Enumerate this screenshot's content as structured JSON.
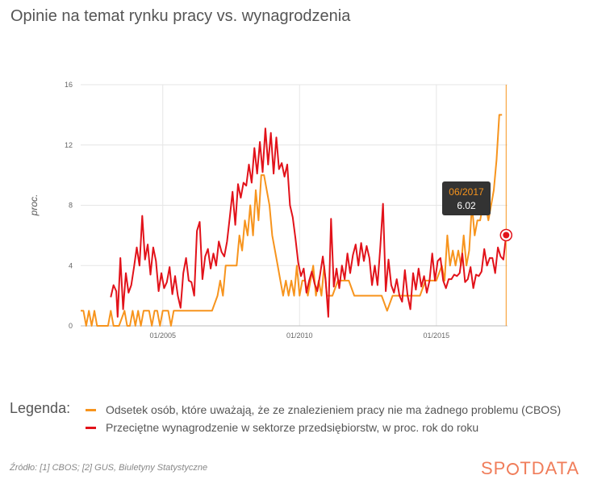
{
  "title": "Opinie na temat rynku pracy vs. wynagrodzenia",
  "legend": {
    "label": "Legenda:",
    "items": [
      {
        "text": "Odsetek osób, które uważają, że ze znalezieniem pracy nie ma żadnego problemu (CBOS)",
        "color": "#f7941d"
      },
      {
        "text": "Przeciętne wynagrodzenie w sektorze przedsiębiorstw, w proc. rok do roku",
        "color": "#e2121a"
      }
    ]
  },
  "source": "Źródło: [1] CBOS; [2] GUS, Biuletyny Statystyczne",
  "brand": {
    "before": "SP",
    "after": "TDATA"
  },
  "tooltip": {
    "date": "06/2017",
    "value": "6.02"
  },
  "chart_data": {
    "type": "line",
    "ylabel": "proc.",
    "xlabel": "",
    "ylim": [
      0,
      16
    ],
    "yticks": [
      "0",
      "4",
      "8",
      "12",
      "16"
    ],
    "xlim": [
      2002.0,
      2017.6
    ],
    "xticks": [
      {
        "label": "01/2005",
        "x": 2005.0
      },
      {
        "label": "01/2010",
        "x": 2010.0
      },
      {
        "label": "01/2015",
        "x": 2015.0
      }
    ],
    "grid": true,
    "series": [
      {
        "name": "Odsetek osób, które uważają, że ze znalezieniem pracy nie ma żadnego problemu (CBOS)",
        "color": "#f7941d",
        "points": [
          [
            2002.0,
            1
          ],
          [
            2002.1,
            1
          ],
          [
            2002.2,
            0
          ],
          [
            2002.3,
            1
          ],
          [
            2002.4,
            0
          ],
          [
            2002.5,
            1
          ],
          [
            2002.6,
            0
          ],
          [
            2002.8,
            0
          ],
          [
            2003.0,
            0
          ],
          [
            2003.1,
            1
          ],
          [
            2003.2,
            0
          ],
          [
            2003.4,
            0
          ],
          [
            2003.6,
            1
          ],
          [
            2003.7,
            0
          ],
          [
            2003.8,
            0
          ],
          [
            2003.9,
            1
          ],
          [
            2004.0,
            0
          ],
          [
            2004.1,
            1
          ],
          [
            2004.2,
            0
          ],
          [
            2004.3,
            1
          ],
          [
            2004.5,
            1
          ],
          [
            2004.6,
            0
          ],
          [
            2004.7,
            1
          ],
          [
            2004.8,
            1
          ],
          [
            2004.9,
            0
          ],
          [
            2005.0,
            1
          ],
          [
            2005.2,
            1
          ],
          [
            2005.3,
            0
          ],
          [
            2005.4,
            1
          ],
          [
            2005.6,
            1
          ],
          [
            2005.8,
            1
          ],
          [
            2006.0,
            1
          ],
          [
            2006.2,
            1
          ],
          [
            2006.4,
            1
          ],
          [
            2006.6,
            1
          ],
          [
            2006.8,
            1
          ],
          [
            2007.0,
            2
          ],
          [
            2007.1,
            3
          ],
          [
            2007.2,
            2
          ],
          [
            2007.3,
            4
          ],
          [
            2007.4,
            4
          ],
          [
            2007.5,
            4
          ],
          [
            2007.6,
            4
          ],
          [
            2007.7,
            4
          ],
          [
            2007.8,
            6
          ],
          [
            2007.9,
            5
          ],
          [
            2008.0,
            7
          ],
          [
            2008.1,
            6
          ],
          [
            2008.2,
            8
          ],
          [
            2008.3,
            6
          ],
          [
            2008.4,
            9
          ],
          [
            2008.5,
            7
          ],
          [
            2008.6,
            10
          ],
          [
            2008.7,
            10
          ],
          [
            2008.8,
            9
          ],
          [
            2008.9,
            8
          ],
          [
            2009.0,
            6
          ],
          [
            2009.1,
            5
          ],
          [
            2009.2,
            4
          ],
          [
            2009.3,
            3
          ],
          [
            2009.4,
            2
          ],
          [
            2009.5,
            3
          ],
          [
            2009.6,
            2
          ],
          [
            2009.7,
            3
          ],
          [
            2009.8,
            2
          ],
          [
            2009.9,
            4
          ],
          [
            2010.0,
            2
          ],
          [
            2010.1,
            3
          ],
          [
            2010.2,
            3
          ],
          [
            2010.3,
            2
          ],
          [
            2010.4,
            3
          ],
          [
            2010.5,
            4
          ],
          [
            2010.6,
            2
          ],
          [
            2010.7,
            3
          ],
          [
            2010.8,
            2
          ],
          [
            2010.9,
            4
          ],
          [
            2011.0,
            2
          ],
          [
            2011.2,
            2
          ],
          [
            2011.4,
            3
          ],
          [
            2011.6,
            3
          ],
          [
            2011.8,
            3
          ],
          [
            2012.0,
            2
          ],
          [
            2012.2,
            2
          ],
          [
            2012.4,
            2
          ],
          [
            2012.6,
            2
          ],
          [
            2012.8,
            2
          ],
          [
            2013.0,
            2
          ],
          [
            2013.2,
            1
          ],
          [
            2013.4,
            2
          ],
          [
            2013.6,
            2
          ],
          [
            2013.8,
            2
          ],
          [
            2014.0,
            2
          ],
          [
            2014.2,
            2
          ],
          [
            2014.4,
            2
          ],
          [
            2014.6,
            3
          ],
          [
            2014.8,
            3
          ],
          [
            2015.0,
            3
          ],
          [
            2015.2,
            4
          ],
          [
            2015.3,
            3
          ],
          [
            2015.4,
            6
          ],
          [
            2015.5,
            4
          ],
          [
            2015.6,
            5
          ],
          [
            2015.7,
            4
          ],
          [
            2015.8,
            5
          ],
          [
            2015.9,
            4
          ],
          [
            2016.0,
            6
          ],
          [
            2016.1,
            4
          ],
          [
            2016.2,
            5
          ],
          [
            2016.3,
            8
          ],
          [
            2016.4,
            6
          ],
          [
            2016.5,
            7
          ],
          [
            2016.6,
            7
          ],
          [
            2016.7,
            8
          ],
          [
            2016.8,
            8
          ],
          [
            2016.9,
            7
          ],
          [
            2017.0,
            8
          ],
          [
            2017.1,
            9
          ],
          [
            2017.2,
            11
          ],
          [
            2017.3,
            14
          ],
          [
            2017.4,
            14
          ]
        ]
      },
      {
        "name": "Przeciętne wynagrodzenie w sektorze przedsiębiorstw, w proc. rok do roku",
        "color": "#e2121a",
        "points": [
          [
            2003.1,
            1.9
          ],
          [
            2003.2,
            2.7
          ],
          [
            2003.3,
            2.3
          ],
          [
            2003.35,
            0.6
          ],
          [
            2003.45,
            4.5
          ],
          [
            2003.55,
            1.1
          ],
          [
            2003.65,
            3.5
          ],
          [
            2003.75,
            2.2
          ],
          [
            2003.85,
            2.7
          ],
          [
            2003.95,
            3.9
          ],
          [
            2004.05,
            5.2
          ],
          [
            2004.15,
            4.0
          ],
          [
            2004.25,
            7.3
          ],
          [
            2004.35,
            4.4
          ],
          [
            2004.45,
            5.4
          ],
          [
            2004.55,
            3.4
          ],
          [
            2004.65,
            5.2
          ],
          [
            2004.75,
            4.3
          ],
          [
            2004.85,
            2.3
          ],
          [
            2004.95,
            3.5
          ],
          [
            2005.05,
            2.5
          ],
          [
            2005.15,
            2.9
          ],
          [
            2005.25,
            3.9
          ],
          [
            2005.35,
            2.1
          ],
          [
            2005.45,
            3.3
          ],
          [
            2005.55,
            2.0
          ],
          [
            2005.65,
            1.2
          ],
          [
            2005.75,
            3.5
          ],
          [
            2005.85,
            4.5
          ],
          [
            2005.95,
            3.0
          ],
          [
            2006.05,
            2.9
          ],
          [
            2006.15,
            2.0
          ],
          [
            2006.25,
            6.3
          ],
          [
            2006.35,
            6.9
          ],
          [
            2006.45,
            3.1
          ],
          [
            2006.55,
            4.6
          ],
          [
            2006.65,
            5.1
          ],
          [
            2006.75,
            3.8
          ],
          [
            2006.85,
            4.8
          ],
          [
            2006.95,
            4.0
          ],
          [
            2007.05,
            5.6
          ],
          [
            2007.15,
            4.9
          ],
          [
            2007.25,
            4.6
          ],
          [
            2007.35,
            5.6
          ],
          [
            2007.45,
            7.2
          ],
          [
            2007.55,
            8.9
          ],
          [
            2007.65,
            6.7
          ],
          [
            2007.75,
            9.4
          ],
          [
            2007.85,
            8.5
          ],
          [
            2007.95,
            9.5
          ],
          [
            2008.05,
            9.3
          ],
          [
            2008.15,
            10.7
          ],
          [
            2008.25,
            9.5
          ],
          [
            2008.35,
            11.8
          ],
          [
            2008.45,
            10.1
          ],
          [
            2008.55,
            12.2
          ],
          [
            2008.65,
            10.2
          ],
          [
            2008.75,
            13.1
          ],
          [
            2008.85,
            10.7
          ],
          [
            2008.95,
            12.8
          ],
          [
            2009.05,
            10.1
          ],
          [
            2009.15,
            12.5
          ],
          [
            2009.25,
            10.4
          ],
          [
            2009.35,
            10.8
          ],
          [
            2009.45,
            9.9
          ],
          [
            2009.55,
            10.7
          ],
          [
            2009.65,
            8.0
          ],
          [
            2009.75,
            7.2
          ],
          [
            2009.85,
            5.8
          ],
          [
            2009.95,
            4.2
          ],
          [
            2010.05,
            3.3
          ],
          [
            2010.15,
            3.8
          ],
          [
            2010.25,
            2.2
          ],
          [
            2010.35,
            3.0
          ],
          [
            2010.45,
            3.6
          ],
          [
            2010.55,
            2.8
          ],
          [
            2010.65,
            2.3
          ],
          [
            2010.75,
            3.4
          ],
          [
            2010.85,
            4.6
          ],
          [
            2010.95,
            3.1
          ],
          [
            2011.05,
            0.6
          ],
          [
            2011.15,
            7.1
          ],
          [
            2011.25,
            2.6
          ],
          [
            2011.35,
            3.8
          ],
          [
            2011.45,
            2.5
          ],
          [
            2011.55,
            4.0
          ],
          [
            2011.65,
            3.1
          ],
          [
            2011.75,
            4.8
          ],
          [
            2011.85,
            3.5
          ],
          [
            2011.95,
            4.7
          ],
          [
            2012.05,
            5.4
          ],
          [
            2012.15,
            4.0
          ],
          [
            2012.25,
            5.5
          ],
          [
            2012.35,
            4.3
          ],
          [
            2012.45,
            5.3
          ],
          [
            2012.55,
            4.5
          ],
          [
            2012.65,
            2.7
          ],
          [
            2012.75,
            4.0
          ],
          [
            2012.85,
            2.7
          ],
          [
            2012.95,
            5.2
          ],
          [
            2013.05,
            8.1
          ],
          [
            2013.15,
            2.3
          ],
          [
            2013.25,
            4.4
          ],
          [
            2013.35,
            2.7
          ],
          [
            2013.45,
            2.2
          ],
          [
            2013.55,
            3.1
          ],
          [
            2013.65,
            2.0
          ],
          [
            2013.75,
            1.6
          ],
          [
            2013.85,
            3.7
          ],
          [
            2013.95,
            2.0
          ],
          [
            2014.05,
            1.1
          ],
          [
            2014.15,
            3.5
          ],
          [
            2014.25,
            2.4
          ],
          [
            2014.35,
            3.8
          ],
          [
            2014.45,
            2.6
          ],
          [
            2014.55,
            3.3
          ],
          [
            2014.65,
            2.2
          ],
          [
            2014.75,
            3.0
          ],
          [
            2014.85,
            4.8
          ],
          [
            2014.95,
            3.0
          ],
          [
            2015.05,
            4.3
          ],
          [
            2015.15,
            4.5
          ],
          [
            2015.25,
            3.0
          ],
          [
            2015.35,
            2.5
          ],
          [
            2015.45,
            3.1
          ],
          [
            2015.55,
            3.1
          ],
          [
            2015.65,
            3.4
          ],
          [
            2015.75,
            3.3
          ],
          [
            2015.85,
            3.5
          ],
          [
            2015.95,
            4.8
          ],
          [
            2016.05,
            2.9
          ],
          [
            2016.15,
            3.1
          ],
          [
            2016.25,
            3.9
          ],
          [
            2016.35,
            2.5
          ],
          [
            2016.45,
            3.4
          ],
          [
            2016.55,
            3.3
          ],
          [
            2016.65,
            3.6
          ],
          [
            2016.75,
            5.1
          ],
          [
            2016.85,
            4.0
          ],
          [
            2016.95,
            4.5
          ],
          [
            2017.05,
            4.5
          ],
          [
            2017.15,
            3.5
          ],
          [
            2017.25,
            5.2
          ],
          [
            2017.35,
            4.6
          ],
          [
            2017.45,
            4.4
          ],
          [
            2017.55,
            6.02
          ]
        ]
      }
    ]
  }
}
